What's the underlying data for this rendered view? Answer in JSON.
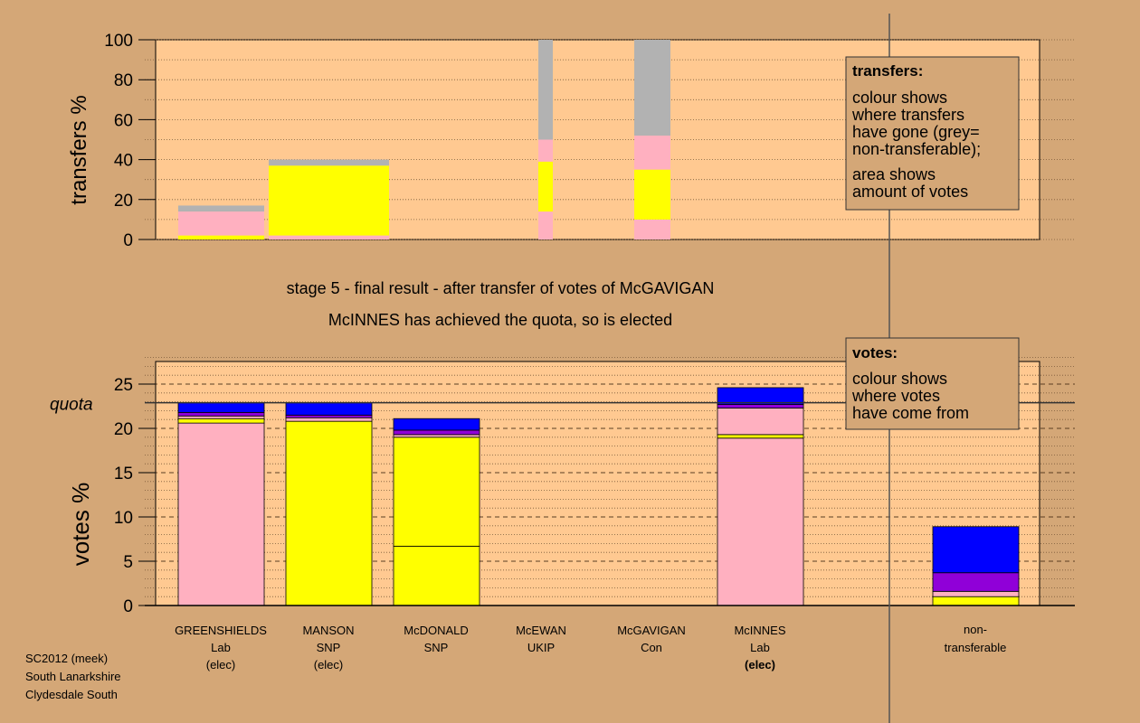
{
  "colors": {
    "background": "#d4a777",
    "plot_bg": "#ffc991",
    "pink": "#ffb0c0",
    "yellow": "#ffff00",
    "purple": "#9000d8",
    "blue": "#0000ff",
    "grey": "#b2b2b2",
    "axis": "#000000"
  },
  "captions": {
    "line1": "stage 5 - final result - after transfer of votes of McGAVIGAN",
    "line2": "McINNES has achieved the quota, so is elected"
  },
  "footer": {
    "line1": "SC2012 (meek)",
    "line2": "South Lanarkshire",
    "line3": "Clydesdale South"
  },
  "candidates": [
    {
      "name": "GREENSHIELDS",
      "party": "Lab",
      "status": "(elec)",
      "bold": false
    },
    {
      "name": "MANSON",
      "party": "SNP",
      "status": "(elec)",
      "bold": false
    },
    {
      "name": "McDONALD",
      "party": "SNP",
      "status": "",
      "bold": false
    },
    {
      "name": "McEWAN",
      "party": "UKIP",
      "status": "",
      "bold": false
    },
    {
      "name": "McGAVIGAN",
      "party": "Con",
      "status": "",
      "bold": false
    },
    {
      "name": "McINNES",
      "party": "Lab",
      "status": "(elec)",
      "bold": true
    }
  ],
  "nontransferable_label": {
    "line1": "non-",
    "line2": "transferable"
  },
  "legends": {
    "transfers": {
      "title": "transfers:",
      "lines": [
        "colour shows",
        "where transfers",
        "have gone (grey=",
        "non-transferable);"
      ],
      "lines2": [
        "area shows",
        "amount of votes"
      ]
    },
    "votes": {
      "title": "votes:",
      "lines": [
        "colour shows",
        "where votes",
        "have come from"
      ]
    }
  },
  "chart_data": [
    {
      "type": "bar",
      "stacked": true,
      "title": "",
      "xlabel": "",
      "ylabel": "transfers %",
      "ylim": [
        0,
        100
      ],
      "yticks": [
        0,
        20,
        40,
        60,
        80,
        100
      ],
      "categories": [
        "GREENSHIELDS",
        "MANSON",
        "McDONALD",
        "McEWAN",
        "McGAVIGAN",
        "McINNES"
      ],
      "bars": [
        {
          "candidate": "GREENSHIELDS",
          "segments": [
            {
              "color": "yellow",
              "from": 0,
              "to": 2
            },
            {
              "color": "pink",
              "from": 2,
              "to": 14
            },
            {
              "color": "grey",
              "from": 14,
              "to": 17
            }
          ]
        },
        {
          "candidate": "MANSON",
          "segments": [
            {
              "color": "pink",
              "from": 0,
              "to": 2
            },
            {
              "color": "yellow",
              "from": 2,
              "to": 37
            },
            {
              "color": "grey",
              "from": 37,
              "to": 40
            }
          ]
        },
        {
          "candidate": "McEWAN",
          "segments": [
            {
              "color": "pink",
              "from": 0,
              "to": 14
            },
            {
              "color": "yellow",
              "from": 14,
              "to": 39
            },
            {
              "color": "pink",
              "from": 39,
              "to": 50
            },
            {
              "color": "grey",
              "from": 50,
              "to": 100
            }
          ]
        },
        {
          "candidate": "McGAVIGAN",
          "segments": [
            {
              "color": "pink",
              "from": 0,
              "to": 10
            },
            {
              "color": "yellow",
              "from": 10,
              "to": 35
            },
            {
              "color": "pink",
              "from": 35,
              "to": 52
            },
            {
              "color": "grey",
              "from": 52,
              "to": 100
            }
          ]
        }
      ]
    },
    {
      "type": "bar",
      "stacked": true,
      "title": "",
      "xlabel": "",
      "ylabel": "votes %",
      "ylim": [
        0,
        28
      ],
      "yticks": [
        0,
        5,
        10,
        15,
        20,
        25
      ],
      "quota_label": "quota",
      "quota": 22.9,
      "categories": [
        "GREENSHIELDS",
        "MANSON",
        "McDONALD",
        "McEWAN",
        "McGAVIGAN",
        "McINNES",
        "non-transferable"
      ],
      "bars": [
        {
          "candidate": "GREENSHIELDS",
          "segments": [
            {
              "color": "pink",
              "from": 0,
              "to": 20.6
            },
            {
              "color": "yellow",
              "from": 20.6,
              "to": 21.1
            },
            {
              "color": "pink",
              "from": 21.1,
              "to": 21.4
            },
            {
              "color": "purple",
              "from": 21.4,
              "to": 21.8
            },
            {
              "color": "blue",
              "from": 21.8,
              "to": 22.9
            }
          ]
        },
        {
          "candidate": "MANSON",
          "segments": [
            {
              "color": "yellow",
              "from": 0,
              "to": 20.8
            },
            {
              "color": "pink",
              "from": 20.8,
              "to": 21.2
            },
            {
              "color": "purple",
              "from": 21.2,
              "to": 21.5
            },
            {
              "color": "blue",
              "from": 21.5,
              "to": 22.9
            }
          ]
        },
        {
          "candidate": "McDONALD",
          "segments": [
            {
              "color": "yellow",
              "from": 0,
              "to": 6.7
            },
            {
              "color": "yellow",
              "from": 6.7,
              "to": 19.0
            },
            {
              "color": "pink",
              "from": 19.0,
              "to": 19.3
            },
            {
              "color": "purple",
              "from": 19.3,
              "to": 19.8
            },
            {
              "color": "blue",
              "from": 19.8,
              "to": 21.1
            }
          ]
        },
        {
          "candidate": "McINNES",
          "segments": [
            {
              "color": "pink",
              "from": 0,
              "to": 18.9
            },
            {
              "color": "yellow",
              "from": 18.9,
              "to": 19.3
            },
            {
              "color": "pink",
              "from": 19.3,
              "to": 22.3
            },
            {
              "color": "purple",
              "from": 22.3,
              "to": 22.7
            },
            {
              "color": "blue",
              "from": 22.7,
              "to": 24.6
            }
          ]
        },
        {
          "candidate": "non-transferable",
          "segments": [
            {
              "color": "yellow",
              "from": 0,
              "to": 1.0
            },
            {
              "color": "pink",
              "from": 1.0,
              "to": 1.6
            },
            {
              "color": "purple",
              "from": 1.6,
              "to": 3.7
            },
            {
              "color": "blue",
              "from": 3.7,
              "to": 8.9
            }
          ]
        }
      ]
    }
  ]
}
